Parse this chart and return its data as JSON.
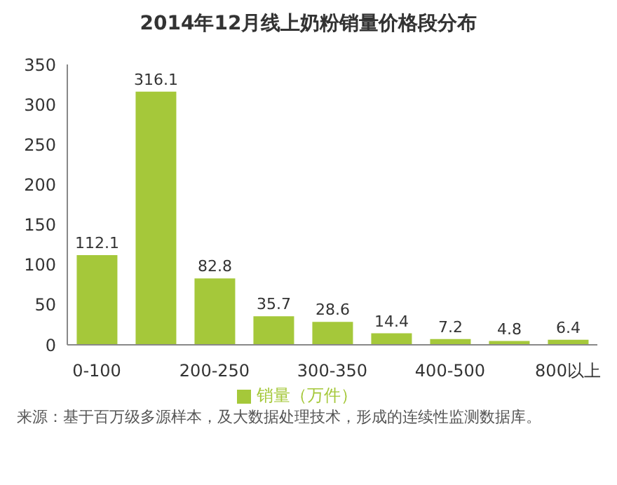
{
  "chart_data": {
    "type": "bar",
    "title": "2014年12月线上奶粉销量价格段分布",
    "categories": [
      "0-100",
      null,
      "200-250",
      null,
      "300-350",
      null,
      "400-500",
      null,
      "800以上"
    ],
    "series": [
      {
        "name": "销量（万件）",
        "color": "#a5c83a",
        "values": [
          112.1,
          316.1,
          82.8,
          35.7,
          28.6,
          14.4,
          7.2,
          4.8,
          6.4
        ]
      }
    ],
    "ylim": [
      0,
      350
    ],
    "yticks": [
      0,
      50,
      100,
      150,
      200,
      250,
      300,
      350
    ],
    "grid": false,
    "legend": "bottom",
    "data_labels": true,
    "annotations": [
      "来源：基于百万级多源样本，及大数据处理技术，形成的连续性监测数据库。"
    ]
  }
}
